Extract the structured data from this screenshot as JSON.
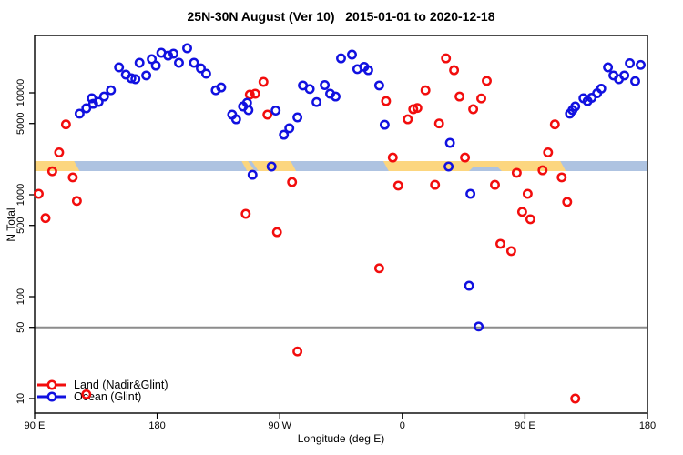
{
  "title": "25N-30N August (Ver 10)   2015-01-01 to 2020-12-18",
  "colors": {
    "land": "#f20d0d",
    "ocean": "#1111e0",
    "band_land": "#fcd67f",
    "band_ocean": "#aec3e1",
    "reference_line": "#8c8c8c",
    "axis": "#000000"
  },
  "legend": {
    "items": [
      {
        "label": "Land (Nadir&Glint)",
        "series": "land"
      },
      {
        "label": "Ocean (Glint)",
        "series": "ocean"
      }
    ]
  },
  "chart_data": {
    "type": "scatter",
    "title": "25N-30N August (Ver 10)   2015-01-01 to 2020-12-18",
    "xlabel": "Longitude (deg E)",
    "ylabel": "N Total",
    "x_axis": {
      "range": [
        90,
        540
      ],
      "ticks": [
        {
          "v": 90,
          "label": "90 E"
        },
        {
          "v": 180,
          "label": "180"
        },
        {
          "v": 270,
          "label": "90 W"
        },
        {
          "v": 360,
          "label": "0"
        },
        {
          "v": 450,
          "label": "90 E"
        },
        {
          "v": 540,
          "label": "180"
        }
      ]
    },
    "y_axis": {
      "scale": "log",
      "range": [
        8,
        36000
      ],
      "ticks": [
        {
          "v": 10,
          "label": "10"
        },
        {
          "v": 50,
          "label": "50"
        },
        {
          "v": 100,
          "label": "100"
        },
        {
          "v": 500,
          "label": "500"
        },
        {
          "v": 1000,
          "label": "1000"
        },
        {
          "v": 5000,
          "label": "5000"
        },
        {
          "v": 10000,
          "label": "10000"
        }
      ]
    },
    "reference_line": {
      "y": 50
    },
    "surface_band": {
      "n_level": 1900,
      "segments": [
        {
          "from": 90,
          "to": 121,
          "surface": "land"
        },
        {
          "from": 121,
          "to": 244,
          "surface": "ocean"
        },
        {
          "from": 244,
          "to": 280,
          "surface": "land"
        },
        {
          "from": 280,
          "to": 348,
          "surface": "ocean"
        },
        {
          "from": 348,
          "to": 478,
          "surface": "land"
        },
        {
          "from": 478,
          "to": 540,
          "surface": "ocean"
        }
      ],
      "ocean_notches": [
        {
          "from": 248,
          "to": 253,
          "shape": "diagonal"
        },
        {
          "from": 411,
          "to": 431,
          "shape": "bottom"
        }
      ]
    },
    "series": [
      {
        "name": "Land (Nadir&Glint)",
        "series": "land",
        "marker": "open-circle",
        "points": [
          [
            113,
            4900
          ],
          [
            108,
            2600
          ],
          [
            103,
            1700
          ],
          [
            118,
            1480
          ],
          [
            93,
            1020
          ],
          [
            121,
            870
          ],
          [
            98,
            590
          ],
          [
            258,
            12800
          ],
          [
            248,
            9600
          ],
          [
            252,
            9800
          ],
          [
            261,
            6100
          ],
          [
            279,
            1330
          ],
          [
            245,
            650
          ],
          [
            268,
            430
          ],
          [
            283,
            29
          ],
          [
            128,
            11
          ],
          [
            348,
            8300
          ],
          [
            364,
            5500
          ],
          [
            368,
            6900
          ],
          [
            371,
            7100
          ],
          [
            377,
            10600
          ],
          [
            387,
            5000
          ],
          [
            392,
            21800
          ],
          [
            398,
            16700
          ],
          [
            402,
            9200
          ],
          [
            412,
            6900
          ],
          [
            418,
            8800
          ],
          [
            422,
            13100
          ],
          [
            353,
            2320
          ],
          [
            406,
            2320
          ],
          [
            357,
            1230
          ],
          [
            384,
            1250
          ],
          [
            428,
            1250
          ],
          [
            343,
            190
          ],
          [
            472,
            4900
          ],
          [
            467,
            2600
          ],
          [
            444,
            1640
          ],
          [
            463,
            1740
          ],
          [
            477,
            1480
          ],
          [
            452,
            1020
          ],
          [
            481,
            850
          ],
          [
            448,
            680
          ],
          [
            454,
            575
          ],
          [
            432,
            330
          ],
          [
            440,
            280
          ],
          [
            487,
            10
          ]
        ]
      },
      {
        "name": "Ocean (Glint)",
        "series": "ocean",
        "marker": "open-circle",
        "points": [
          [
            123,
            6240
          ],
          [
            128,
            7050
          ],
          [
            133,
            7800
          ],
          [
            132,
            8840
          ],
          [
            137,
            8140
          ],
          [
            141,
            9200
          ],
          [
            146,
            10600
          ],
          [
            152,
            17800
          ],
          [
            157,
            15100
          ],
          [
            161,
            13900
          ],
          [
            164,
            13600
          ],
          [
            167,
            19700
          ],
          [
            172,
            14800
          ],
          [
            176,
            21400
          ],
          [
            179,
            18500
          ],
          [
            183,
            24700
          ],
          [
            188,
            23200
          ],
          [
            192,
            24200
          ],
          [
            196,
            19700
          ],
          [
            202,
            27400
          ],
          [
            207,
            19700
          ],
          [
            212,
            17400
          ],
          [
            216,
            15400
          ],
          [
            223,
            10600
          ],
          [
            227,
            11300
          ],
          [
            235,
            6100
          ],
          [
            238,
            5500
          ],
          [
            243,
            7350
          ],
          [
            246,
            7980
          ],
          [
            247,
            6760
          ],
          [
            250,
            1570
          ],
          [
            264,
            1890
          ],
          [
            267,
            6700
          ],
          [
            273,
            3880
          ],
          [
            277,
            4490
          ],
          [
            283,
            5740
          ],
          [
            287,
            11800
          ],
          [
            292,
            10900
          ],
          [
            297,
            8100
          ],
          [
            303,
            11900
          ],
          [
            307,
            9800
          ],
          [
            311,
            9200
          ],
          [
            315,
            21800
          ],
          [
            323,
            23700
          ],
          [
            327,
            17100
          ],
          [
            332,
            18000
          ],
          [
            335,
            16700
          ],
          [
            343,
            11800
          ],
          [
            347,
            4860
          ],
          [
            394,
            1890
          ],
          [
            395,
            3230
          ],
          [
            409,
            128
          ],
          [
            410,
            1020
          ],
          [
            416,
            51
          ],
          [
            483,
            6240
          ],
          [
            485,
            6760
          ],
          [
            487,
            7350
          ],
          [
            493,
            8840
          ],
          [
            496,
            8300
          ],
          [
            499,
            8940
          ],
          [
            503,
            9900
          ],
          [
            506,
            11000
          ],
          [
            511,
            17800
          ],
          [
            515,
            14800
          ],
          [
            519,
            13600
          ],
          [
            523,
            14800
          ],
          [
            527,
            19500
          ],
          [
            531,
            13000
          ],
          [
            535,
            18800
          ]
        ]
      }
    ],
    "legend_position": "bottom-left",
    "grid": false
  }
}
